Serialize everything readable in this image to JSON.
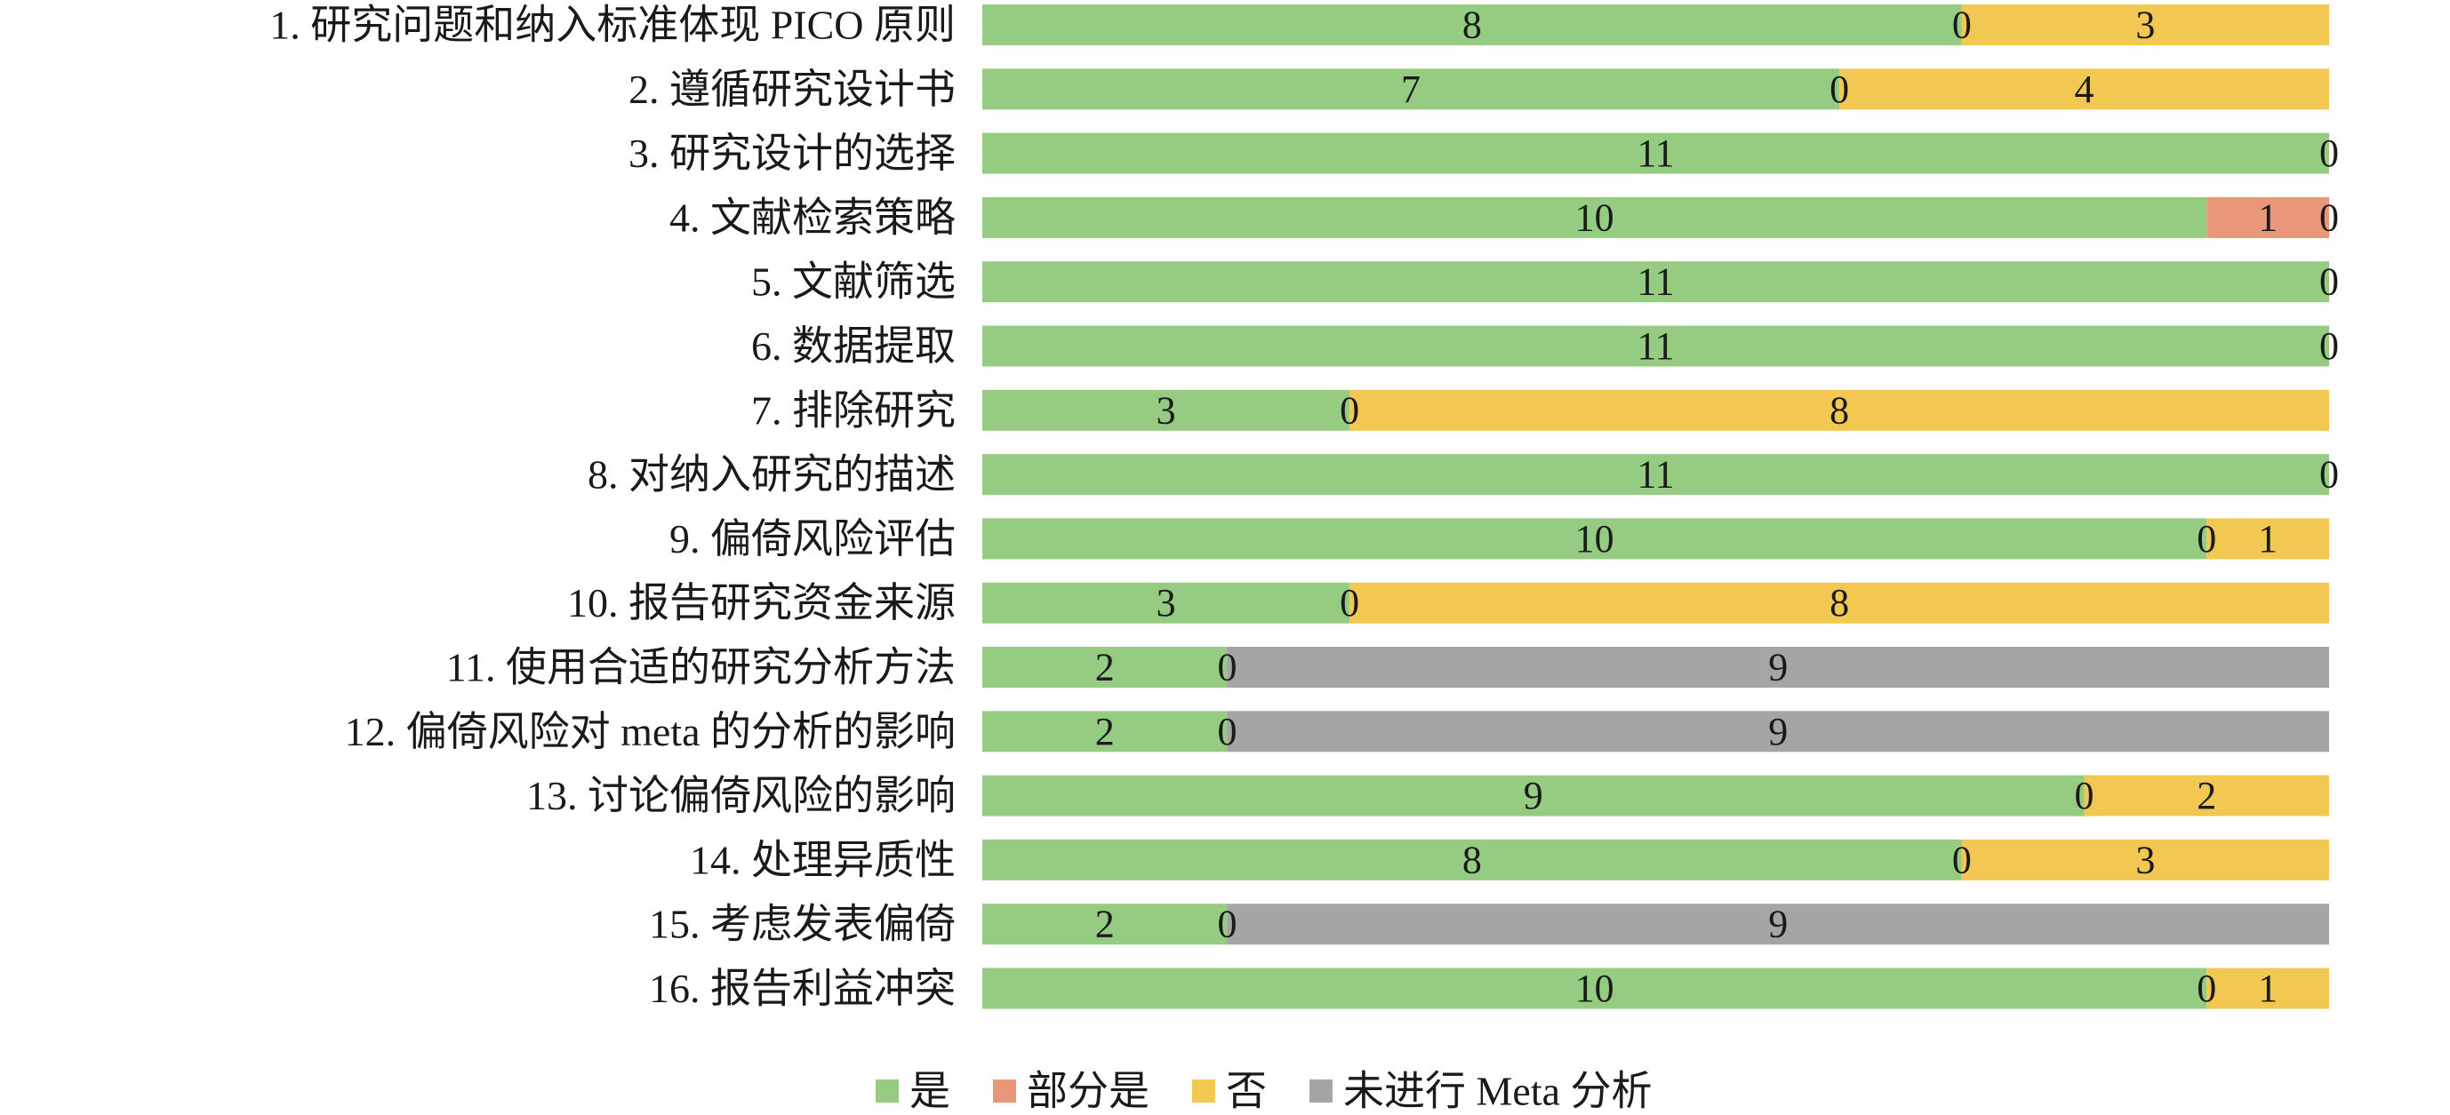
{
  "chart_data": {
    "type": "bar",
    "orientation": "horizontal",
    "stacked": true,
    "normalized": true,
    "categories": [
      "1. 研究问题和纳入标准体现 PICO 原则",
      "2. 遵循研究设计书",
      "3. 研究设计的选择",
      "4. 文献检索策略",
      "5. 文献筛选",
      "6. 数据提取",
      "7. 排除研究",
      "8. 对纳入研究的描述",
      "9. 偏倚风险评估",
      "10. 报告研究资金来源",
      "11. 使用合适的研究分析方法",
      "12. 偏倚风险对 meta 的分析的影响",
      "13. 讨论偏倚风险的影响",
      "14. 处理异质性",
      "15. 考虑发表偏倚",
      "16. 报告利益冲突"
    ],
    "series": [
      {
        "name": "是",
        "color": "#96cc82",
        "values": [
          8,
          7,
          11,
          10,
          11,
          11,
          3,
          11,
          10,
          3,
          2,
          2,
          9,
          8,
          2,
          10
        ]
      },
      {
        "name": "部分是",
        "color": "#e9967a",
        "values": [
          0,
          0,
          null,
          1,
          null,
          null,
          0,
          null,
          0,
          0,
          0,
          0,
          0,
          0,
          0,
          0
        ]
      },
      {
        "name": "否",
        "color": "#f2c752",
        "values": [
          3,
          4,
          0,
          0,
          0,
          0,
          8,
          0,
          1,
          8,
          null,
          null,
          2,
          3,
          null,
          1
        ]
      },
      {
        "name": "未进行 Meta 分析",
        "color": "#a5a4a6",
        "values": [
          null,
          null,
          null,
          null,
          null,
          null,
          null,
          null,
          null,
          null,
          9,
          9,
          null,
          null,
          9,
          null
        ]
      }
    ],
    "legend_position": "bottom",
    "grid": false
  }
}
